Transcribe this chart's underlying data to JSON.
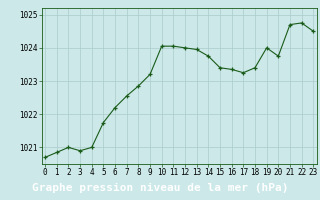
{
  "x": [
    0,
    1,
    2,
    3,
    4,
    5,
    6,
    7,
    8,
    9,
    10,
    11,
    12,
    13,
    14,
    15,
    16,
    17,
    18,
    19,
    20,
    21,
    22,
    23
  ],
  "y": [
    1020.7,
    1020.85,
    1021.0,
    1020.9,
    1021.0,
    1021.75,
    1022.2,
    1022.55,
    1022.85,
    1023.2,
    1024.05,
    1024.05,
    1024.0,
    1023.95,
    1023.75,
    1023.4,
    1023.35,
    1023.25,
    1023.4,
    1024.0,
    1023.75,
    1024.7,
    1024.75,
    1024.5
  ],
  "line_color": "#1a5c1a",
  "marker": "+",
  "marker_size": 3,
  "bg_color": "#cce8e8",
  "grid_color": "#aacccc",
  "xlabel": "Graphe pression niveau de la mer (hPa)",
  "xlabel_fontsize": 8,
  "ylim": [
    1020.5,
    1025.2
  ],
  "yticks": [
    1021,
    1022,
    1023,
    1024,
    1025
  ],
  "xticks": [
    0,
    1,
    2,
    3,
    4,
    5,
    6,
    7,
    8,
    9,
    10,
    11,
    12,
    13,
    14,
    15,
    16,
    17,
    18,
    19,
    20,
    21,
    22,
    23
  ],
  "tick_fontsize": 5.5,
  "xlabel_bg": "#1a5c1a",
  "xlabel_color": "#ffffff",
  "xlim_left": -0.3,
  "xlim_right": 23.3
}
